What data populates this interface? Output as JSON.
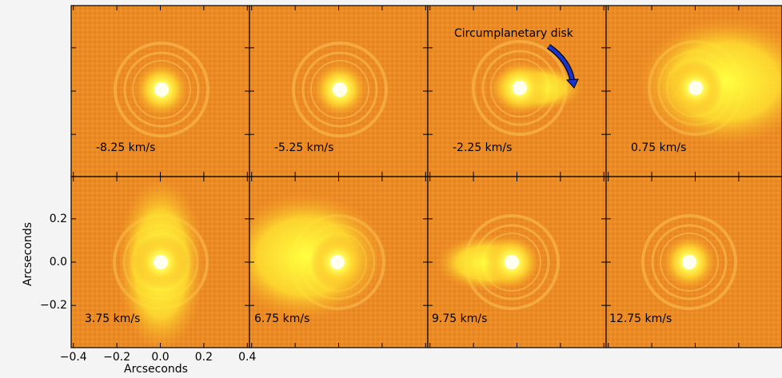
{
  "chart_data": {
    "type": "image-grid",
    "xlabel": "Arcseconds",
    "ylabel": "Arcseconds",
    "panels": [
      {
        "label": "-8.25 km/s"
      },
      {
        "label": "-5.25 km/s"
      },
      {
        "label": "-2.25 km/s"
      },
      {
        "label": "0.75 km/s"
      },
      {
        "label": "3.75 km/s"
      },
      {
        "label": "6.75 km/s"
      },
      {
        "label": "9.75 km/s"
      },
      {
        "label": "12.75 km/s"
      }
    ],
    "annotation": "Circumplanetary disk",
    "xlim": [
      -0.41,
      0.41
    ],
    "ylim": [
      -0.395,
      0.395
    ],
    "xticks": [
      {
        "value": -0.4,
        "label": "−0.4"
      },
      {
        "value": -0.2,
        "label": "−0.2"
      },
      {
        "value": 0,
        "label": "0.0"
      },
      0.2,
      0.4
    ],
    "yticks": [
      {
        "value": -0.2,
        "label": "−0.2"
      },
      {
        "value": 0,
        "label": "0.0"
      },
      0.2
    ]
  }
}
